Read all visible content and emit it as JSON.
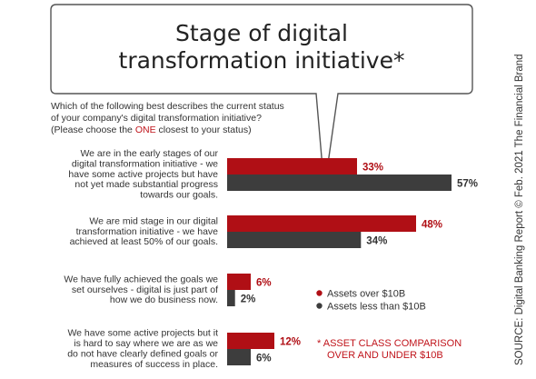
{
  "chart_data": {
    "type": "bar",
    "orientation": "horizontal",
    "title": "Stage of digital transformation initiative*",
    "title_lines": [
      "Stage of digital",
      "transformation initiative*"
    ],
    "question_lines": [
      "Which of the following best describes the current status",
      "of your company's digital transformation initiative?"
    ],
    "question_note_prefix": "(Please choose the ",
    "question_note_highlight": "ONE",
    "question_note_suffix": " closest to your status)",
    "categories": [
      [
        "We are in the early stages of our",
        "digital transformation initiative - we",
        "have some active projects but have",
        "not yet made substantial progress",
        "towards our goals."
      ],
      [
        "We are mid stage in our digital",
        "transformation initiative - we have",
        "achieved at least 50% of our goals."
      ],
      [
        "We have fully achieved the goals we",
        "set ourselves - digital is just part of",
        "how we do business now."
      ],
      [
        "We have some active projects but it",
        "is hard to say where we are as we",
        "do not have clearly defined goals or",
        "measures of success in place."
      ]
    ],
    "series": [
      {
        "name": "Assets over $10B",
        "values": [
          33,
          48,
          6,
          12
        ],
        "labels": [
          "33%",
          "48%",
          "6%",
          "12%"
        ]
      },
      {
        "name": "Assets less than $10B",
        "values": [
          57,
          34,
          2,
          6
        ],
        "labels": [
          "57%",
          "34%",
          "2%",
          "6%"
        ]
      }
    ],
    "value_unit": "%",
    "xlim": [
      0,
      57
    ],
    "grid": false,
    "legend_position": "right",
    "note_lines": [
      "* ASSET CLASS COMPARISON",
      "OVER AND UNDER $10B"
    ],
    "source": "SOURCE: Digital Banking Report © Feb. 2021 The Financial Brand",
    "colors": {
      "series_0": "#b00f15",
      "series_1": "#3d3d3d",
      "series_0_label": "#b00f15",
      "series_1_label": "#333333",
      "highlight": "#c0141b",
      "text": "#333333",
      "bubble_border": "#555555"
    }
  }
}
